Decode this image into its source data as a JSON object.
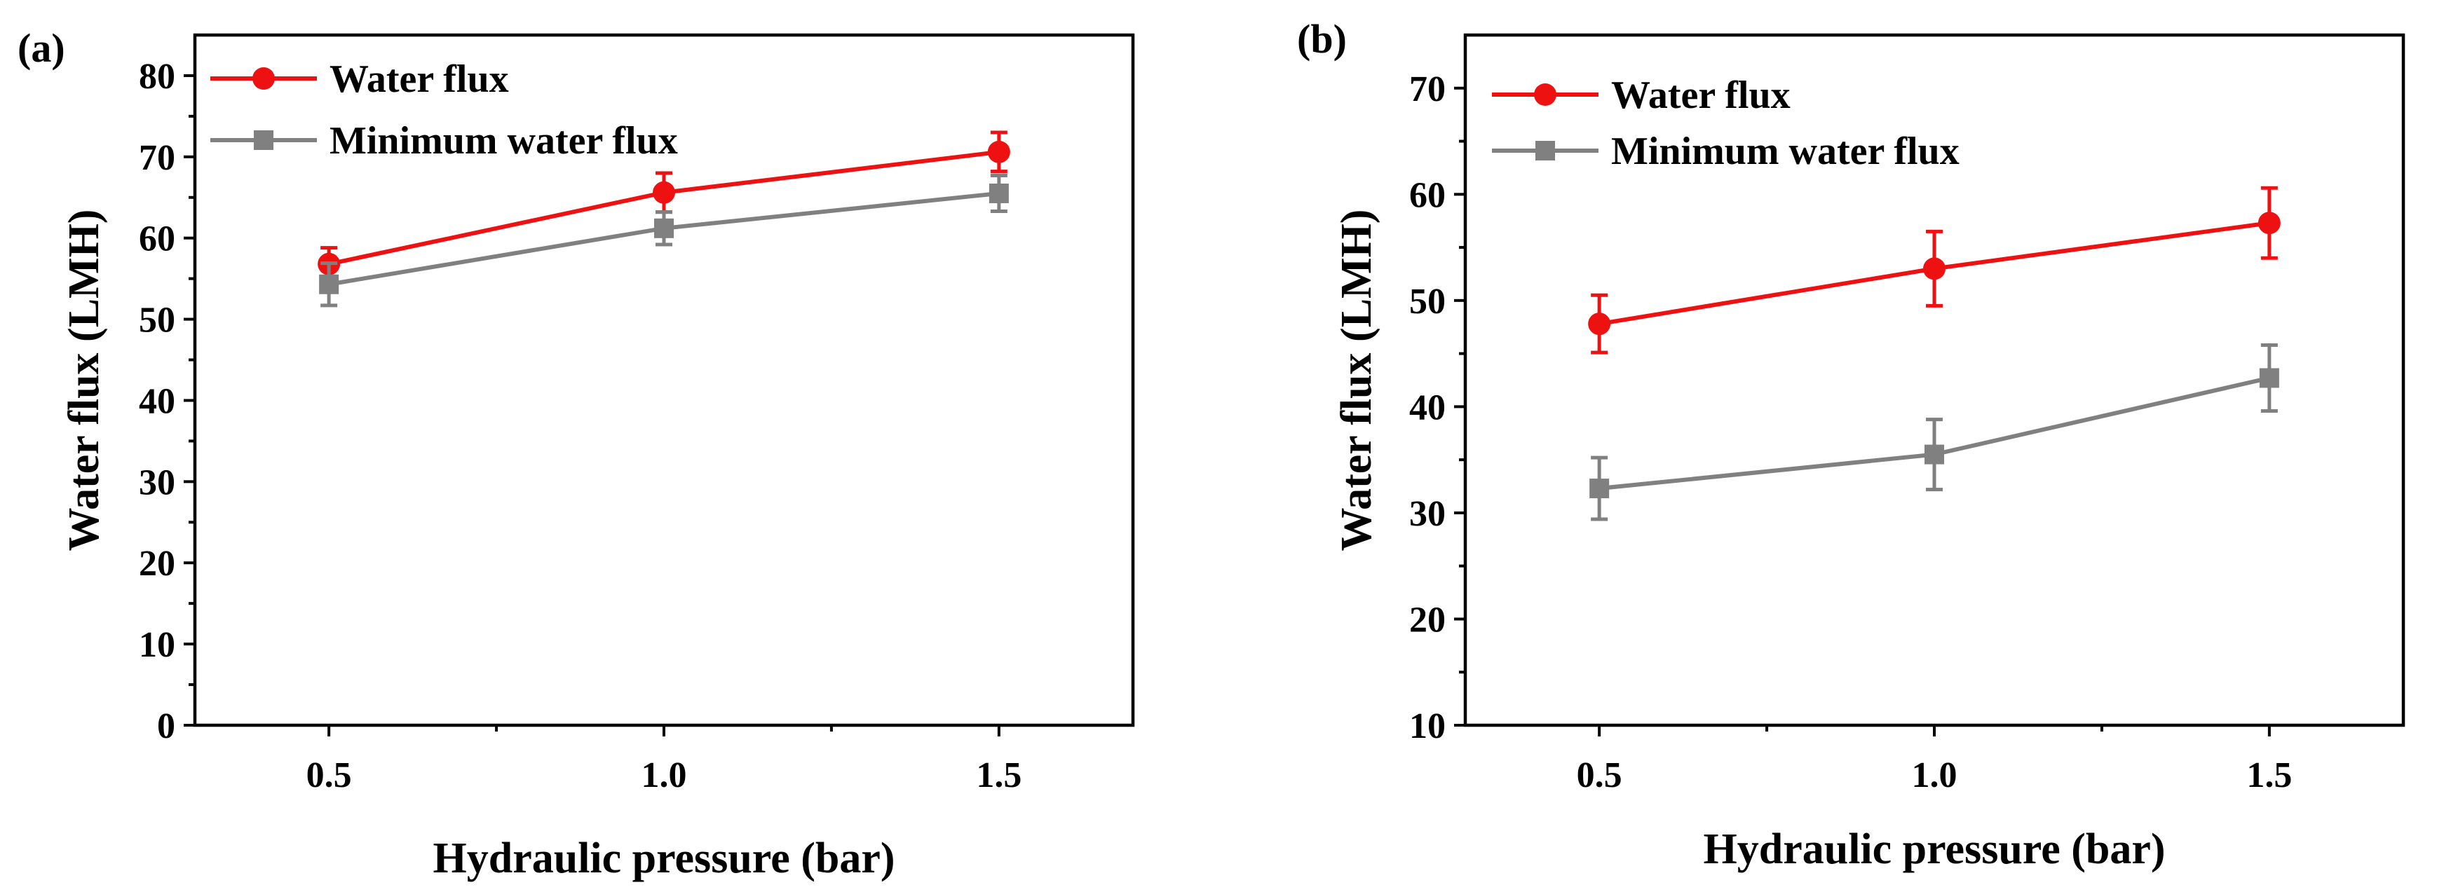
{
  "chart_data": [
    {
      "type": "line",
      "panel_label": "(a)",
      "xlabel": "Hydraulic pressure (bar)",
      "ylabel": "Water flux (LMH)",
      "xlim": [
        0.3,
        1.7
      ],
      "ylim": [
        0,
        85
      ],
      "xticks": [
        0.5,
        1.0,
        1.5
      ],
      "xtick_labels": [
        "0.5",
        "1.0",
        "1.5"
      ],
      "yticks": [
        0,
        10,
        20,
        30,
        40,
        50,
        60,
        70,
        80
      ],
      "ytick_labels": [
        "0",
        "10",
        "20",
        "30",
        "40",
        "50",
        "60",
        "70",
        "80"
      ],
      "legend_position": "top-left",
      "series": [
        {
          "name": "Water flux",
          "color": "#ee1111",
          "marker": "circle",
          "x": [
            0.5,
            1.0,
            1.5
          ],
          "y": [
            56.8,
            65.6,
            70.6
          ],
          "err": [
            2.0,
            2.4,
            2.4
          ]
        },
        {
          "name": "Minimum water flux",
          "color": "#808080",
          "marker": "square",
          "x": [
            0.5,
            1.0,
            1.5
          ],
          "y": [
            54.3,
            61.2,
            65.5
          ],
          "err": [
            2.6,
            2.0,
            2.2
          ]
        }
      ]
    },
    {
      "type": "line",
      "panel_label": "(b)",
      "xlabel": "Hydraulic pressure (bar)",
      "ylabel": "Water flux (LMH)",
      "xlim": [
        0.3,
        1.7
      ],
      "ylim": [
        10,
        75
      ],
      "xticks": [
        0.5,
        1.0,
        1.5
      ],
      "xtick_labels": [
        "0.5",
        "1.0",
        "1.5"
      ],
      "yticks": [
        10,
        20,
        30,
        40,
        50,
        60,
        70
      ],
      "ytick_labels": [
        "10",
        "20",
        "30",
        "40",
        "50",
        "60",
        "70"
      ],
      "legend_position": "top-left",
      "series": [
        {
          "name": "Water flux",
          "color": "#ee1111",
          "marker": "circle",
          "x": [
            0.5,
            1.0,
            1.5
          ],
          "y": [
            47.8,
            53.0,
            57.3
          ],
          "err": [
            2.7,
            3.5,
            3.3
          ]
        },
        {
          "name": "Minimum water flux",
          "color": "#808080",
          "marker": "square",
          "x": [
            0.5,
            1.0,
            1.5
          ],
          "y": [
            32.3,
            35.5,
            42.7
          ],
          "err": [
            2.9,
            3.3,
            3.1
          ]
        }
      ]
    }
  ]
}
